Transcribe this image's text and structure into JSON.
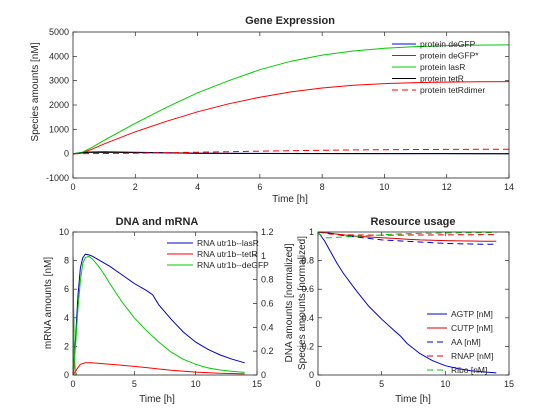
{
  "chart_data": [
    {
      "type": "line",
      "title": "Gene Expression",
      "xlabel": "Time [h]",
      "ylabel": "Species amounts [nM]",
      "xlim": [
        0,
        14
      ],
      "ylim": [
        -1000,
        5000
      ],
      "xticks": [
        "0",
        "2",
        "4",
        "6",
        "8",
        "10",
        "12",
        "14"
      ],
      "yticks": [
        "-1000",
        "0",
        "1000",
        "2000",
        "3000",
        "4000",
        "5000"
      ],
      "legend_position": "top-right",
      "series": [
        {
          "name": "protein deGFP",
          "color": "#0000ff",
          "dash": "solid",
          "x": [
            0,
            0.2,
            0.5,
            1,
            2,
            3,
            4,
            6,
            8,
            10,
            12,
            14
          ],
          "y": [
            0,
            30,
            70,
            80,
            60,
            40,
            20,
            10,
            5,
            3,
            2,
            0
          ]
        },
        {
          "name": "protein deGFP*",
          "color": "#ff0000",
          "dash": "solid",
          "x": [
            0,
            0.3,
            0.6,
            1,
            2,
            3,
            4,
            5,
            6,
            7,
            8,
            9,
            10,
            11,
            12,
            13,
            14
          ],
          "y": [
            0,
            40,
            180,
            400,
            900,
            1330,
            1720,
            2050,
            2320,
            2540,
            2700,
            2810,
            2880,
            2920,
            2940,
            2955,
            2960
          ]
        },
        {
          "name": "protein lasR",
          "color": "#00cc00",
          "dash": "solid",
          "x": [
            0,
            0.3,
            0.6,
            1,
            2,
            3,
            4,
            5,
            6,
            7,
            8,
            9,
            10,
            11,
            12,
            13,
            14
          ],
          "y": [
            0,
            60,
            250,
            550,
            1250,
            1900,
            2500,
            3000,
            3450,
            3800,
            4050,
            4220,
            4330,
            4400,
            4440,
            4460,
            4470
          ]
        },
        {
          "name": "protein tetR",
          "color": "#000000",
          "dash": "solid",
          "x": [
            0,
            0.2,
            0.5,
            1,
            2,
            3,
            4,
            6,
            8,
            10,
            12,
            14
          ],
          "y": [
            0,
            20,
            50,
            60,
            45,
            30,
            15,
            8,
            4,
            2,
            1,
            0
          ]
        },
        {
          "name": "protein tetRdimer",
          "color": "#ff0000",
          "dash": "dashed",
          "x": [
            0,
            1,
            2,
            3,
            4,
            5,
            6,
            7,
            8,
            9,
            10,
            11,
            12,
            13,
            14
          ],
          "y": [
            0,
            5,
            20,
            40,
            60,
            80,
            100,
            120,
            140,
            155,
            165,
            172,
            176,
            178,
            180
          ]
        }
      ]
    },
    {
      "type": "line",
      "title": "DNA and mRNA",
      "xlabel": "Time [h]",
      "ylabel": "mRNA amounts [nM]",
      "y2label": "DNA amounts [normalized]",
      "xlim": [
        0,
        15
      ],
      "ylim": [
        0,
        10
      ],
      "y2lim": [
        0,
        1.2
      ],
      "xticks": [
        "0",
        "5",
        "10",
        "15"
      ],
      "yticks": [
        "0",
        "2",
        "4",
        "6",
        "8",
        "10"
      ],
      "y2ticks": [
        "0",
        "0.2",
        "0.4",
        "0.6",
        "0.8",
        "1",
        "1.2"
      ],
      "legend_position": "top-right",
      "series": [
        {
          "name": "RNA utr1b--lasR",
          "color": "#0000cc",
          "dash": "solid",
          "x": [
            0,
            0.2,
            0.4,
            0.6,
            0.8,
            1.0,
            1.3,
            1.6,
            2,
            3,
            4,
            5,
            6,
            6.5,
            7,
            8,
            9,
            10,
            11,
            12,
            13,
            14
          ],
          "y": [
            0,
            2.5,
            5.5,
            7.5,
            8.2,
            8.45,
            8.4,
            8.3,
            8.1,
            7.6,
            7.0,
            6.4,
            5.9,
            5.6,
            4.9,
            3.9,
            3.0,
            2.3,
            1.8,
            1.4,
            1.1,
            0.85
          ]
        },
        {
          "name": "RNA utr1b--tetR",
          "color": "#ff0000",
          "dash": "solid",
          "x": [
            0,
            0.3,
            0.6,
            1,
            1.5,
            2,
            3,
            4,
            5,
            6,
            7,
            8,
            10,
            12,
            14
          ],
          "y": [
            0,
            0.4,
            0.75,
            0.85,
            0.85,
            0.82,
            0.75,
            0.68,
            0.6,
            0.52,
            0.42,
            0.33,
            0.2,
            0.12,
            0.08
          ]
        },
        {
          "name": "RNA utr1b--deGFP",
          "color": "#00cc00",
          "dash": "solid",
          "x": [
            0,
            0.2,
            0.4,
            0.6,
            0.8,
            1.0,
            1.3,
            1.6,
            2,
            2.5,
            3,
            4,
            5,
            6,
            7,
            8,
            9,
            10,
            11,
            12,
            13,
            14
          ],
          "y": [
            0,
            2.0,
            4.6,
            6.6,
            7.8,
            8.2,
            8.3,
            8.1,
            7.7,
            7.1,
            6.4,
            5.1,
            4.0,
            3.1,
            2.3,
            1.6,
            1.1,
            0.75,
            0.5,
            0.35,
            0.25,
            0.18
          ]
        },
        {
          "color": "#0000cc",
          "dash": "solid",
          "axis": "y2",
          "x": [
            0,
            0.05,
            0.1,
            0.15,
            0.2,
            0.3
          ],
          "y": [
            1.0,
            0.5,
            0.2,
            0.06,
            0.02,
            0.0
          ]
        },
        {
          "color": "#ff0000",
          "dash": "solid",
          "axis": "y2",
          "x": [
            0,
            0.05,
            0.1,
            0.15,
            0.2,
            0.3
          ],
          "y": [
            1.0,
            0.45,
            0.18,
            0.05,
            0.02,
            0.0
          ]
        },
        {
          "color": "#00cc00",
          "dash": "solid",
          "axis": "y2",
          "x": [
            0,
            0.05,
            0.1,
            0.15,
            0.2,
            0.3
          ],
          "y": [
            1.0,
            0.55,
            0.22,
            0.07,
            0.02,
            0.0
          ]
        }
      ]
    },
    {
      "type": "line",
      "title": "Resource usage",
      "xlabel": "Time [h]",
      "ylabel": "Species amounts [normalized]",
      "xlim": [
        0,
        15
      ],
      "ylim": [
        0,
        1
      ],
      "xticks": [
        "0",
        "5",
        "10",
        "15"
      ],
      "yticks": [
        "0",
        "0.2",
        "0.4",
        "0.6",
        "0.8",
        "1"
      ],
      "legend_position": "bottom-right",
      "series": [
        {
          "name": "AGTP [nM]",
          "color": "#0000dd",
          "dash": "solid",
          "x": [
            0,
            0.5,
            1,
            1.5,
            2,
            3,
            4,
            5,
            6,
            6.5,
            7,
            8,
            9,
            10,
            11,
            12,
            13,
            14
          ],
          "y": [
            1.0,
            0.94,
            0.86,
            0.78,
            0.71,
            0.59,
            0.48,
            0.39,
            0.31,
            0.27,
            0.22,
            0.15,
            0.1,
            0.065,
            0.045,
            0.03,
            0.022,
            0.015
          ]
        },
        {
          "name": "CUTP [nM]",
          "color": "#dd0000",
          "dash": "solid",
          "x": [
            0,
            1,
            2,
            3,
            4,
            5,
            6,
            7,
            8,
            9,
            10,
            11,
            12,
            13,
            14
          ],
          "y": [
            1.0,
            0.99,
            0.98,
            0.97,
            0.965,
            0.96,
            0.955,
            0.95,
            0.945,
            0.942,
            0.94,
            0.938,
            0.937,
            0.936,
            0.935
          ]
        },
        {
          "name": "AA [nM]",
          "color": "#0000dd",
          "dash": "dashed",
          "x": [
            0,
            1,
            2,
            3,
            4,
            5,
            6,
            7,
            8,
            9,
            10,
            11,
            12,
            13,
            14
          ],
          "y": [
            1.0,
            0.99,
            0.975,
            0.965,
            0.955,
            0.945,
            0.94,
            0.935,
            0.93,
            0.925,
            0.92,
            0.918,
            0.916,
            0.915,
            0.914
          ]
        },
        {
          "name": "RNAP [nM]",
          "color": "#dd0000",
          "dash": "dashed",
          "x": [
            0,
            1,
            2,
            4,
            6,
            8,
            10,
            12,
            14
          ],
          "y": [
            1.0,
            0.985,
            0.98,
            0.978,
            0.978,
            0.979,
            0.98,
            0.981,
            0.982
          ]
        },
        {
          "name": "Ribo [nM]",
          "color": "#00cc00",
          "dash": "dashed",
          "x": [
            0,
            0.3,
            0.6,
            1,
            2,
            3,
            4,
            5,
            6,
            8,
            10,
            12,
            14
          ],
          "y": [
            1.0,
            0.97,
            0.96,
            0.96,
            0.965,
            0.97,
            0.975,
            0.98,
            0.985,
            0.99,
            0.993,
            0.995,
            0.996
          ]
        }
      ]
    }
  ]
}
